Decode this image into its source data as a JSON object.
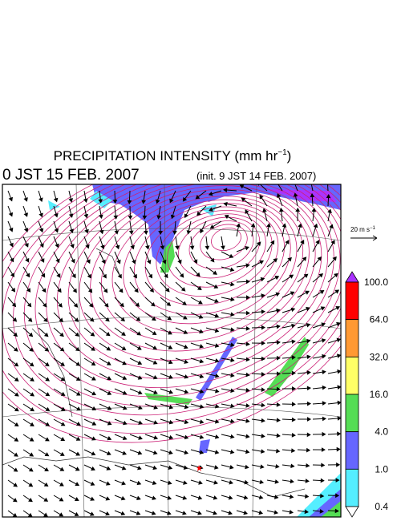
{
  "title": {
    "text": "PRECIPITATION INTENSITY (mm hr",
    "superscript": "−1",
    "closing": ")"
  },
  "valid_time": "0 JST 15 FEB. 2007",
  "init_time": "(init. 9 JST 14 FEB. 2007)",
  "wind_scale": {
    "text": "20 m s",
    "superscript": "−1"
  },
  "colorbar": {
    "labels": [
      "100.0",
      "64.0",
      "32.0",
      "16.0",
      "4.0",
      "1.0",
      "0.4"
    ],
    "colors": [
      "#ff0000",
      "#ff9933",
      "#ffff66",
      "#55dd55",
      "#6666ff",
      "#55eeff"
    ],
    "over_color": "#aa33ff",
    "under_color": "#ffffff"
  }
}
